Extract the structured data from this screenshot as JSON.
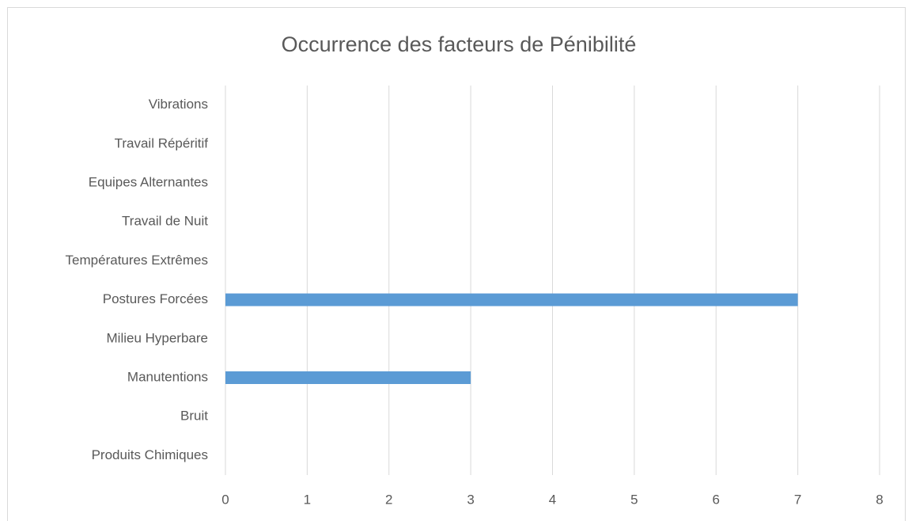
{
  "chart_data": {
    "type": "barh",
    "title": "Occurrence des facteurs de Pénibilité",
    "categories": [
      "Produits Chimiques",
      "Bruit",
      "Manutentions",
      "Milieu Hyperbare",
      "Postures Forcées",
      "Températures Extrêmes",
      "Travail de Nuit",
      "Equipes Alternantes",
      "Travail Répéritif",
      "Vibrations"
    ],
    "values": [
      0,
      0,
      3,
      0,
      7,
      0,
      0,
      0,
      0,
      0
    ],
    "color": "#5b9bd5",
    "xlim": [
      0,
      8
    ],
    "xticks": [
      0,
      1,
      2,
      3,
      4,
      5,
      6,
      7,
      8
    ],
    "grid": true
  }
}
